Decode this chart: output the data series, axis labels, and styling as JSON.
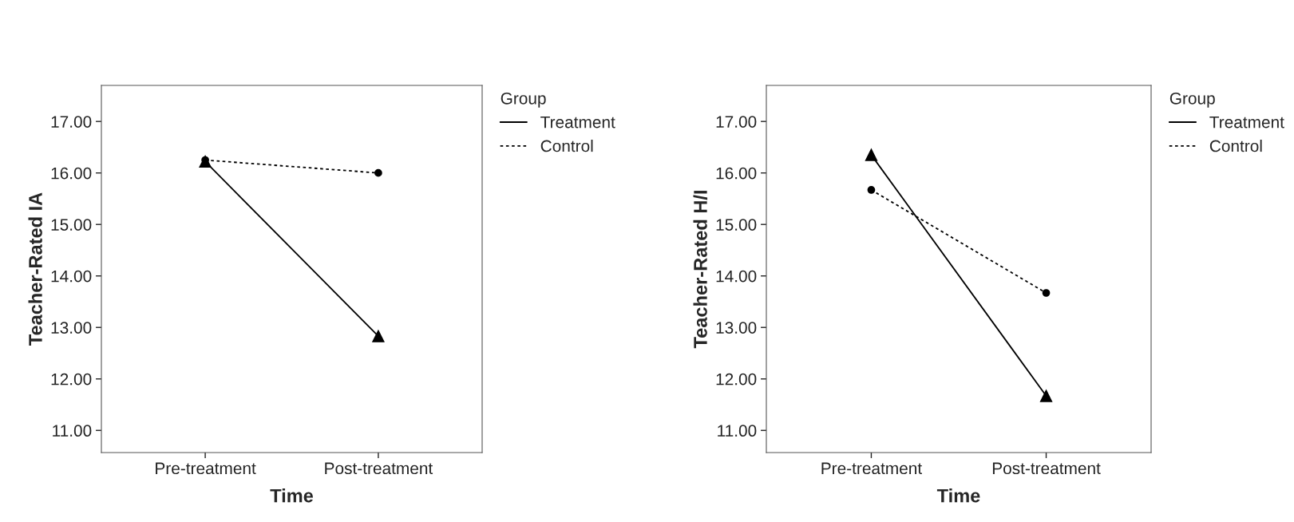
{
  "chart_data": [
    {
      "type": "line",
      "categories": [
        "Pre-treatment",
        "Post-treatment"
      ],
      "xlabel": "Time",
      "ylabel": "Teacher-Rated IA",
      "legend_title": "Group",
      "legend": "top right",
      "ylim": [
        10.57,
        17.7
      ],
      "yticks": [
        {
          "value": 11,
          "label": "11.00"
        },
        {
          "value": 12,
          "label": "12.00"
        },
        {
          "value": 13,
          "label": "13.00"
        },
        {
          "value": 14,
          "label": "14.00"
        },
        {
          "value": 15,
          "label": "15.00"
        },
        {
          "value": 16,
          "label": "16.00"
        },
        {
          "value": 17,
          "label": "17.00"
        }
      ],
      "grid": false,
      "series": [
        {
          "name": "Treatment",
          "color": "#000000",
          "marker": "triangle",
          "line_style": "solid",
          "values": [
            16.22,
            12.83
          ]
        },
        {
          "name": "Control",
          "color": "#000000",
          "marker": "circle",
          "line_style": "dotted",
          "values": [
            16.25,
            16.0
          ]
        }
      ]
    },
    {
      "type": "line",
      "categories": [
        "Pre-treatment",
        "Post-treatment"
      ],
      "xlabel": "Time",
      "ylabel": "Teacher-Rated H/I",
      "legend_title": "Group",
      "legend": "top right",
      "ylim": [
        10.57,
        17.7
      ],
      "yticks": [
        {
          "value": 11,
          "label": "11.00"
        },
        {
          "value": 12,
          "label": "12.00"
        },
        {
          "value": 13,
          "label": "13.00"
        },
        {
          "value": 14,
          "label": "14.00"
        },
        {
          "value": 15,
          "label": "15.00"
        },
        {
          "value": 16,
          "label": "16.00"
        },
        {
          "value": 17,
          "label": "17.00"
        }
      ],
      "grid": false,
      "series": [
        {
          "name": "Treatment",
          "color": "#000000",
          "marker": "triangle",
          "line_style": "solid",
          "values": [
            16.35,
            11.67
          ]
        },
        {
          "name": "Control",
          "color": "#000000",
          "marker": "circle",
          "line_style": "dotted",
          "values": [
            15.67,
            13.67
          ]
        }
      ]
    }
  ]
}
